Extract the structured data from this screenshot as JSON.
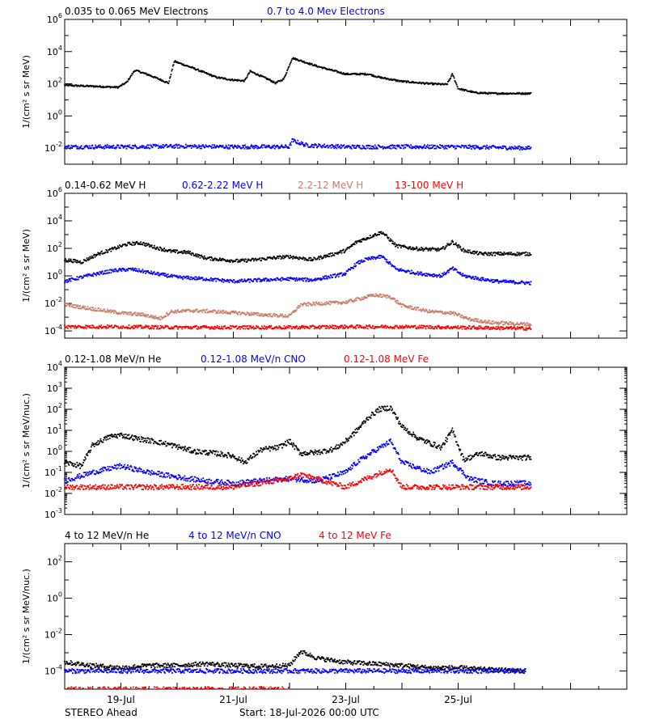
{
  "chart_data": [
    {
      "type": "scatter",
      "ylabel": "1/(cm² s sr MeV)",
      "yscale": "log",
      "ylim": [
        0.001,
        1000000
      ],
      "yticks": [
        {
          "value": 0.01,
          "base": "10",
          "exp": "-2"
        },
        {
          "value": 1,
          "base": "10",
          "exp": "0"
        },
        {
          "value": 100,
          "base": "10",
          "exp": "2"
        },
        {
          "value": 10000,
          "base": "10",
          "exp": "4"
        },
        {
          "value": 1000000,
          "base": "10",
          "exp": "6"
        }
      ],
      "series": [
        {
          "name": "0.035 to 0.065 MeV Electrons",
          "color": "#000000",
          "points": [
            [
              0,
              80
            ],
            [
              0.5,
              70
            ],
            [
              0.95,
              60
            ],
            [
              1.1,
              120
            ],
            [
              1.25,
              700
            ],
            [
              1.5,
              350
            ],
            [
              1.85,
              110
            ],
            [
              1.95,
              2500
            ],
            [
              2.3,
              900
            ],
            [
              2.7,
              250
            ],
            [
              2.95,
              180
            ],
            [
              3.2,
              150
            ],
            [
              3.3,
              600
            ],
            [
              3.65,
              170
            ],
            [
              3.75,
              110
            ],
            [
              3.9,
              200
            ],
            [
              4.05,
              4000
            ],
            [
              4.5,
              1200
            ],
            [
              5.0,
              400
            ],
            [
              5.4,
              400
            ],
            [
              5.6,
              250
            ],
            [
              6.0,
              140
            ],
            [
              6.5,
              100
            ],
            [
              6.8,
              90
            ],
            [
              6.9,
              400
            ],
            [
              7.0,
              50
            ],
            [
              7.3,
              28
            ],
            [
              7.6,
              25
            ],
            [
              8.3,
              25
            ]
          ]
        },
        {
          "name": "0.7 to 4.0 Mev Electrons",
          "color": "#0000ff",
          "points": [
            [
              0,
              0.012
            ],
            [
              1,
              0.012
            ],
            [
              2,
              0.013
            ],
            [
              3,
              0.012
            ],
            [
              4,
              0.012
            ],
            [
              4.05,
              0.03
            ],
            [
              4.3,
              0.015
            ],
            [
              5,
              0.012
            ],
            [
              6,
              0.012
            ],
            [
              7,
              0.012
            ],
            [
              8.3,
              0.01
            ]
          ]
        }
      ]
    },
    {
      "type": "scatter",
      "ylabel": "1/(cm² s sr MeV)",
      "yscale": "log",
      "ylim": [
        3e-05,
        1000000
      ],
      "yticks": [
        {
          "value": 0.0001,
          "base": "10",
          "exp": "-4"
        },
        {
          "value": 0.01,
          "base": "10",
          "exp": "-2"
        },
        {
          "value": 1,
          "base": "10",
          "exp": "0"
        },
        {
          "value": 100,
          "base": "10",
          "exp": "2"
        },
        {
          "value": 10000,
          "base": "10",
          "exp": "4"
        },
        {
          "value": 1000000,
          "base": "10",
          "exp": "6"
        }
      ],
      "series": [
        {
          "name": "0.14-0.62 MeV H",
          "color": "#000000",
          "points": [
            [
              0,
              15
            ],
            [
              0.3,
              10
            ],
            [
              0.6,
              40
            ],
            [
              0.9,
              100
            ],
            [
              1.1,
              200
            ],
            [
              1.35,
              250
            ],
            [
              1.6,
              120
            ],
            [
              1.9,
              60
            ],
            [
              2.2,
              50
            ],
            [
              2.5,
              20
            ],
            [
              2.8,
              15
            ],
            [
              3.1,
              12
            ],
            [
              3.4,
              15
            ],
            [
              3.7,
              20
            ],
            [
              4.0,
              25
            ],
            [
              4.4,
              15
            ],
            [
              4.8,
              40
            ],
            [
              5.0,
              70
            ],
            [
              5.2,
              300
            ],
            [
              5.35,
              500
            ],
            [
              5.5,
              900
            ],
            [
              5.65,
              1500
            ],
            [
              5.9,
              150
            ],
            [
              6.3,
              90
            ],
            [
              6.7,
              80
            ],
            [
              6.9,
              300
            ],
            [
              7.1,
              70
            ],
            [
              7.4,
              40
            ],
            [
              7.7,
              40
            ],
            [
              8.3,
              40
            ]
          ]
        },
        {
          "name": "0.62-2.22 MeV H",
          "color": "#0000ff",
          "points": [
            [
              0,
              0.4
            ],
            [
              0.3,
              0.8
            ],
            [
              0.6,
              1.5
            ],
            [
              0.9,
              2.5
            ],
            [
              1.2,
              3.0
            ],
            [
              1.6,
              1.5
            ],
            [
              2.0,
              0.8
            ],
            [
              2.5,
              0.6
            ],
            [
              3.0,
              0.4
            ],
            [
              3.5,
              0.5
            ],
            [
              4.0,
              0.6
            ],
            [
              4.4,
              0.5
            ],
            [
              4.8,
              1.0
            ],
            [
              5.0,
              1.5
            ],
            [
              5.2,
              8
            ],
            [
              5.35,
              15
            ],
            [
              5.5,
              20
            ],
            [
              5.65,
              25
            ],
            [
              5.9,
              3
            ],
            [
              6.3,
              1.5
            ],
            [
              6.7,
              1.0
            ],
            [
              6.9,
              3.5
            ],
            [
              7.1,
              1.0
            ],
            [
              7.4,
              0.6
            ],
            [
              7.7,
              0.4
            ],
            [
              8.3,
              0.3
            ]
          ]
        },
        {
          "name": "2.2-12 MeV H",
          "color": "#c87e6b",
          "points": [
            [
              0,
              0.008
            ],
            [
              0.5,
              0.004
            ],
            [
              1.0,
              0.002
            ],
            [
              1.4,
              0.0015
            ],
            [
              1.7,
              0.0008
            ],
            [
              1.9,
              0.0025
            ],
            [
              2.3,
              0.003
            ],
            [
              2.7,
              0.0025
            ],
            [
              3.1,
              0.002
            ],
            [
              3.5,
              0.0015
            ],
            [
              4.0,
              0.0012
            ],
            [
              4.2,
              0.008
            ],
            [
              4.6,
              0.01
            ],
            [
              5.0,
              0.012
            ],
            [
              5.5,
              0.04
            ],
            [
              5.8,
              0.03
            ],
            [
              6.0,
              0.007
            ],
            [
              6.5,
              0.0025
            ],
            [
              6.9,
              0.002
            ],
            [
              7.2,
              0.0007
            ],
            [
              7.6,
              0.0004
            ],
            [
              8.3,
              0.0003
            ]
          ]
        },
        {
          "name": "13-100 MeV H",
          "color": "#ff0000",
          "points": [
            [
              0,
              0.0002
            ],
            [
              1,
              0.0002
            ],
            [
              2,
              0.00018
            ],
            [
              3,
              0.00018
            ],
            [
              4,
              0.00018
            ],
            [
              5,
              0.0002
            ],
            [
              6,
              0.0002
            ],
            [
              7,
              0.00018
            ],
            [
              8.3,
              0.00015
            ]
          ]
        }
      ]
    },
    {
      "type": "scatter",
      "ylabel": "1/(cm² s sr MeV/nuc.)",
      "yscale": "log",
      "ylim": [
        0.001,
        10000
      ],
      "yticks": [
        {
          "value": 0.001,
          "base": "10",
          "exp": "-3"
        },
        {
          "value": 0.01,
          "base": "10",
          "exp": "-2"
        },
        {
          "value": 0.1,
          "base": "10",
          "exp": "-1"
        },
        {
          "value": 1,
          "base": "10",
          "exp": "0"
        },
        {
          "value": 10,
          "base": "10",
          "exp": "1"
        },
        {
          "value": 100,
          "base": "10",
          "exp": "2"
        },
        {
          "value": 1000,
          "base": "10",
          "exp": "3"
        },
        {
          "value": 10000,
          "base": "10",
          "exp": "4"
        }
      ],
      "series": [
        {
          "name": "0.12-1.08 MeV/n He",
          "color": "#000000",
          "points": [
            [
              0,
              0.3
            ],
            [
              0.3,
              0.2
            ],
            [
              0.5,
              2
            ],
            [
              0.8,
              5
            ],
            [
              1.0,
              6
            ],
            [
              1.3,
              4
            ],
            [
              1.6,
              3
            ],
            [
              1.9,
              2
            ],
            [
              2.3,
              1
            ],
            [
              2.7,
              0.8
            ],
            [
              3.0,
              0.6
            ],
            [
              3.2,
              0.3
            ],
            [
              3.5,
              1.2
            ],
            [
              3.8,
              1.5
            ],
            [
              4.0,
              3
            ],
            [
              4.2,
              0.8
            ],
            [
              4.5,
              0.9
            ],
            [
              4.8,
              1.3
            ],
            [
              5.0,
              3
            ],
            [
              5.2,
              10
            ],
            [
              5.4,
              40
            ],
            [
              5.6,
              100
            ],
            [
              5.8,
              120
            ],
            [
              6.0,
              15
            ],
            [
              6.3,
              4
            ],
            [
              6.7,
              1.5
            ],
            [
              6.9,
              10
            ],
            [
              7.1,
              0.4
            ],
            [
              7.4,
              0.8
            ],
            [
              7.7,
              0.5
            ],
            [
              8.3,
              0.5
            ]
          ]
        },
        {
          "name": "0.12-1.08 MeV/n CNO",
          "color": "#0000ff",
          "points": [
            [
              0,
              0.04
            ],
            [
              0.5,
              0.1
            ],
            [
              1.0,
              0.2
            ],
            [
              1.5,
              0.1
            ],
            [
              2.0,
              0.06
            ],
            [
              2.5,
              0.04
            ],
            [
              3.0,
              0.03
            ],
            [
              3.5,
              0.04
            ],
            [
              4.0,
              0.05
            ],
            [
              4.5,
              0.04
            ],
            [
              5.0,
              0.1
            ],
            [
              5.2,
              0.3
            ],
            [
              5.5,
              1
            ],
            [
              5.8,
              3
            ],
            [
              6.0,
              0.3
            ],
            [
              6.5,
              0.1
            ],
            [
              6.9,
              0.3
            ],
            [
              7.2,
              0.05
            ],
            [
              7.6,
              0.03
            ],
            [
              8.3,
              0.03
            ]
          ]
        },
        {
          "name": "0.12-1.08 MeV Fe",
          "color": "#ff0000",
          "points": [
            [
              0,
              0.02
            ],
            [
              1,
              0.02
            ],
            [
              2,
              0.02
            ],
            [
              3,
              0.02
            ],
            [
              4,
              0.05
            ],
            [
              4.2,
              0.08
            ],
            [
              5,
              0.02
            ],
            [
              5.5,
              0.07
            ],
            [
              5.8,
              0.15
            ],
            [
              6,
              0.02
            ],
            [
              7,
              0.02
            ],
            [
              8.3,
              0.02
            ]
          ]
        }
      ]
    },
    {
      "type": "scatter",
      "ylabel": "1/(cm² s sr MeV/nuc.)",
      "yscale": "log",
      "ylim": [
        1e-05,
        1000
      ],
      "yticks": [
        {
          "value": 0.0001,
          "base": "10",
          "exp": "-4"
        },
        {
          "value": 0.01,
          "base": "10",
          "exp": "-2"
        },
        {
          "value": 1,
          "base": "10",
          "exp": "0"
        },
        {
          "value": 100,
          "base": "10",
          "exp": "2"
        }
      ],
      "series": [
        {
          "name": "4 to 12 MeV/n He",
          "color": "#000000",
          "points": [
            [
              0,
              0.0003
            ],
            [
              0.5,
              0.0002
            ],
            [
              1.0,
              0.00015
            ],
            [
              1.5,
              0.0002
            ],
            [
              2.0,
              0.0002
            ],
            [
              2.5,
              0.00025
            ],
            [
              3.0,
              0.0002
            ],
            [
              3.5,
              0.00018
            ],
            [
              4.0,
              0.0002
            ],
            [
              4.2,
              0.0012
            ],
            [
              4.5,
              0.0005
            ],
            [
              5.0,
              0.0003
            ],
            [
              5.5,
              0.00025
            ],
            [
              6.0,
              0.0002
            ],
            [
              6.5,
              0.00015
            ],
            [
              7.0,
              0.00015
            ],
            [
              7.5,
              0.00012
            ],
            [
              8.2,
              0.0001
            ]
          ]
        },
        {
          "name": "4 to 12 MeV/n CNO",
          "color": "#0000ff",
          "points": [
            [
              0,
              0.0001
            ],
            [
              2,
              0.0001
            ],
            [
              4,
              0.0001
            ],
            [
              6,
              0.0001
            ],
            [
              8.2,
              0.0001
            ]
          ]
        },
        {
          "name": "4 to 12 MeV Fe",
          "color": "#ff0000",
          "points": [
            [
              0,
              1e-05
            ],
            [
              1,
              1e-05
            ],
            [
              2,
              1e-05
            ],
            [
              3,
              1e-05
            ],
            [
              4,
              1e-05
            ]
          ]
        }
      ]
    }
  ],
  "x_axis": {
    "xlim_days": [
      0,
      10
    ],
    "labeled_ticks": [
      {
        "day": 1,
        "label": "19-Jul"
      },
      {
        "day": 3,
        "label": "21-Jul"
      },
      {
        "day": 5,
        "label": "23-Jul"
      },
      {
        "day": 7,
        "label": "25-Jul"
      }
    ]
  },
  "footer": {
    "spacecraft": "STEREO Ahead",
    "start": "Start: 18-Jul-2026 00:00 UTC"
  }
}
